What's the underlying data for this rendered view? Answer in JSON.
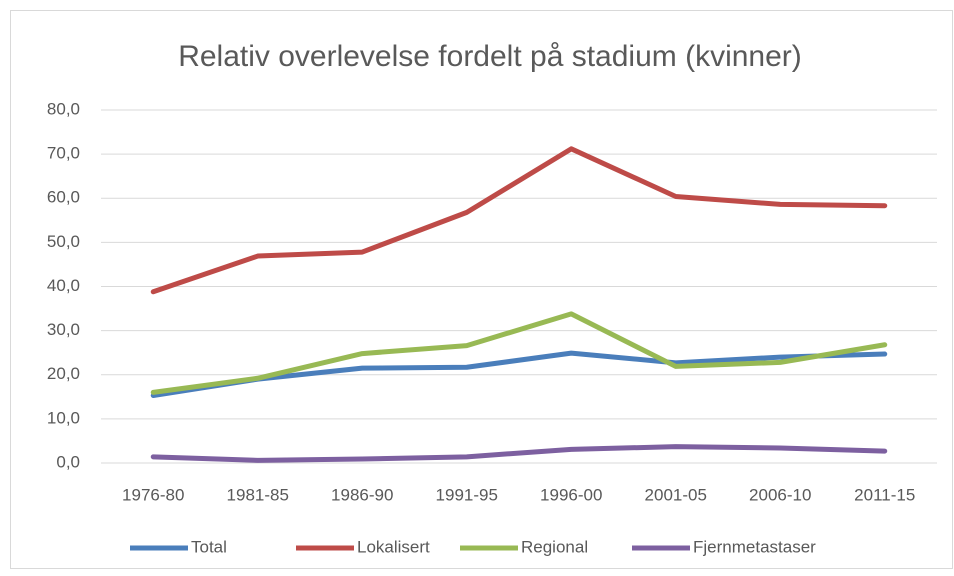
{
  "chart_data": {
    "type": "line",
    "title": "Relativ overlevelse fordelt på stadium (kvinner)",
    "categories": [
      "1976-80",
      "1981-85",
      "1986-90",
      "1991-95",
      "1996-00",
      "2001-05",
      "2006-10",
      "2011-15"
    ],
    "series": [
      {
        "name": "Total",
        "color": "#4a7ebb",
        "values": [
          15.3,
          19.0,
          21.5,
          21.7,
          24.9,
          22.7,
          24.0,
          24.7
        ]
      },
      {
        "name": "Lokalisert",
        "color": "#be4b48",
        "values": [
          38.8,
          46.9,
          47.8,
          56.8,
          71.2,
          60.4,
          58.6,
          58.3
        ]
      },
      {
        "name": "Regional",
        "color": "#98b954",
        "values": [
          16.0,
          19.2,
          24.8,
          26.6,
          33.8,
          21.9,
          22.8,
          26.8
        ]
      },
      {
        "name": "Fjernmetastaser",
        "color": "#7d60a0",
        "values": [
          1.4,
          0.6,
          0.9,
          1.4,
          3.1,
          3.7,
          3.4,
          2.7
        ]
      }
    ],
    "ylim": [
      0,
      80
    ],
    "yticks": [
      {
        "value": 0,
        "label": "0,0"
      },
      {
        "value": 10,
        "label": "10,0"
      },
      {
        "value": 20,
        "label": "20,0"
      },
      {
        "value": 30,
        "label": "30,0"
      },
      {
        "value": 40,
        "label": "40,0"
      },
      {
        "value": 50,
        "label": "50,0"
      },
      {
        "value": 60,
        "label": "60,0"
      },
      {
        "value": 70,
        "label": "70,0"
      },
      {
        "value": 80,
        "label": "80,0"
      }
    ],
    "grid": true,
    "legend": "bottom"
  }
}
